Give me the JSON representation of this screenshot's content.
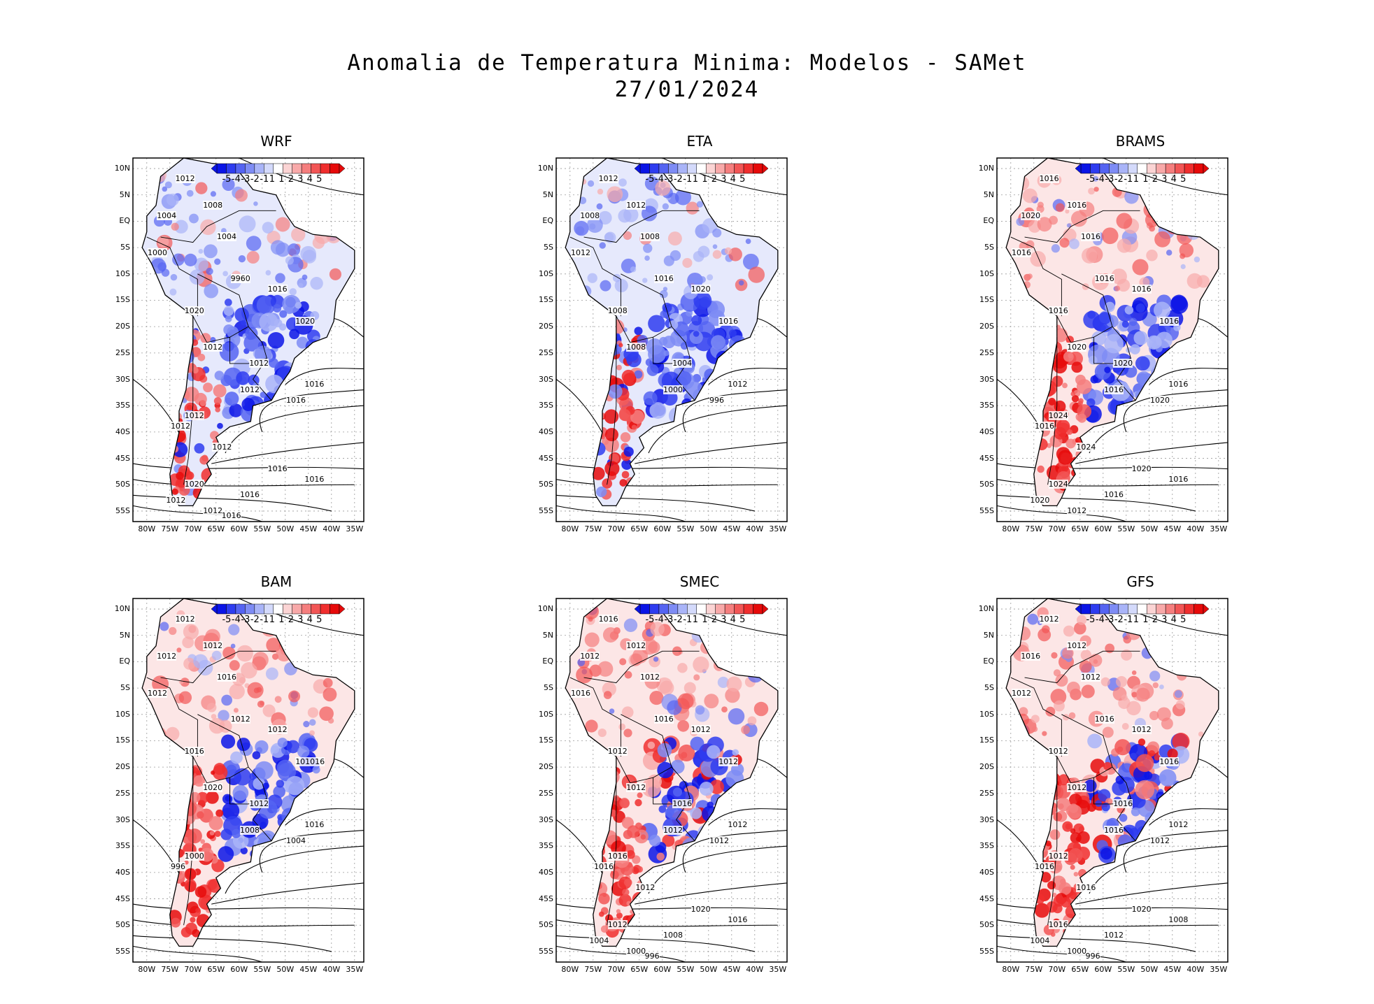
{
  "title_line1": "Anomalia de Temperatura Minima: Modelos - SAMet",
  "title_line2": "27/01/2024",
  "colorbar": {
    "labels": [
      "-5",
      "-4",
      "-3",
      "-2",
      "-1",
      "1",
      "1",
      "2",
      "3",
      "4",
      "5"
    ],
    "colors": [
      "#0a14e6",
      "#2e3cf0",
      "#5564f2",
      "#7e8cf5",
      "#a9b4f8",
      "#d4dafb",
      "#ffffff",
      "#fbd4d4",
      "#f8a9a9",
      "#f57e7e",
      "#f25555",
      "#f02e2e",
      "#e60a0a"
    ]
  },
  "lat_ticks": [
    "10N",
    "5N",
    "EQ",
    "5S",
    "10S",
    "15S",
    "20S",
    "25S",
    "30S",
    "35S",
    "40S",
    "45S",
    "50S",
    "55S"
  ],
  "lon_ticks": [
    "80W",
    "75W",
    "70W",
    "65W",
    "60W",
    "55W",
    "50W",
    "45W",
    "40W",
    "35W"
  ],
  "panels": [
    {
      "name": "WRF",
      "scheme": "blue",
      "labels": [
        "1012",
        "1012",
        "1016",
        "1012",
        "1012",
        "1020",
        "1016",
        "1020",
        "1020",
        "1012",
        "1012",
        "1016",
        "1012",
        "1016",
        "1012",
        "1012",
        "1012",
        "1016",
        "1016",
        "1020",
        "1016",
        "1012",
        "1012",
        "1016",
        "1012",
        "1008",
        "1004",
        "1004",
        "1000",
        "996"
      ]
    },
    {
      "name": "ETA",
      "scheme": "blue",
      "labels": [
        "1012",
        "1012",
        "1008",
        "1008",
        "1012",
        "1016",
        "1020",
        "1008",
        "1016",
        "1008",
        "1004",
        "1012",
        "1000",
        "996"
      ]
    },
    {
      "name": "BRAMS",
      "scheme": "mixed",
      "labels": [
        "1016",
        "1016",
        "1020",
        "1016",
        "1016",
        "1016",
        "1016",
        "1016",
        "1016",
        "1020",
        "1020",
        "1016",
        "1016",
        "1020",
        "1024",
        "1016",
        "1024",
        "1020",
        "1016",
        "1024",
        "1016",
        "1020",
        "1012"
      ]
    },
    {
      "name": "BAM",
      "scheme": "mixed",
      "labels": [
        "1012",
        "1012",
        "1012",
        "1016",
        "1012",
        "1012",
        "1012",
        "1016",
        "101016",
        "1020",
        "1012",
        "1016",
        "1008",
        "1004",
        "1000",
        "996"
      ]
    },
    {
      "name": "SMEC",
      "scheme": "red",
      "labels": [
        "1016",
        "1012",
        "1012",
        "1012",
        "1016",
        "1016",
        "1012",
        "1012",
        "1012",
        "1012",
        "1016",
        "1012",
        "1012",
        "1012",
        "1016",
        "1016",
        "1012",
        "1020",
        "1016",
        "1012",
        "1008",
        "1004",
        "1000",
        "996"
      ]
    },
    {
      "name": "GFS",
      "scheme": "red",
      "labels": [
        "1012",
        "1012",
        "1016",
        "1012",
        "1012",
        "1016",
        "1012",
        "1012",
        "1016",
        "1012",
        "1016",
        "1012",
        "1016",
        "1012",
        "1012",
        "1016",
        "1016",
        "1020",
        "1008",
        "1016",
        "1012",
        "1004",
        "1000",
        "996"
      ]
    }
  ]
}
